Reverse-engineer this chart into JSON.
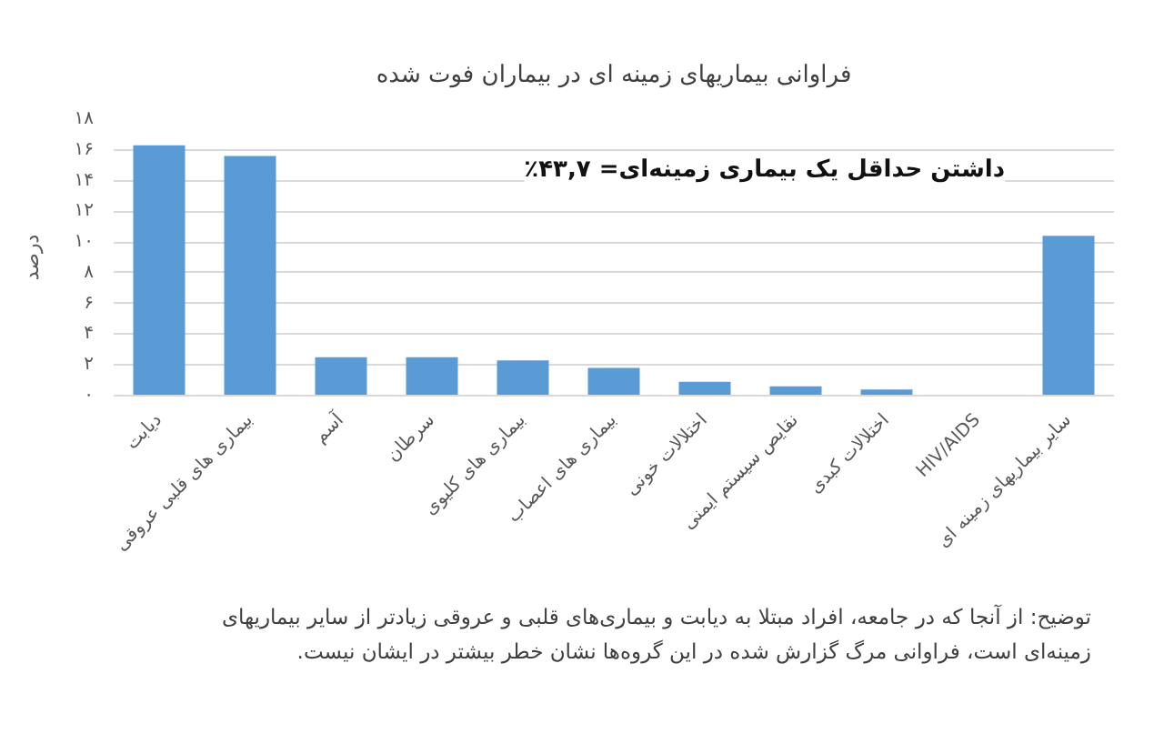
{
  "chart_data": {
    "type": "bar",
    "title": "فراوانی بیماریهای زمینه ای در بیماران فوت شده",
    "ylabel": "درصد",
    "categories": [
      "دیابت",
      "بیماری های قلبی عروقی",
      "آسم",
      "سرطان",
      "بیماری های کلیوی",
      "بیماری های اعصاب",
      "اختلالات خونی",
      "نقایص سیستم ایمنی",
      "اختلالات کبدی",
      "HIV/AIDS",
      "سایر بیماریهای زمینه ای"
    ],
    "values": [
      16.3,
      15.6,
      2.5,
      2.5,
      2.3,
      1.8,
      0.9,
      0.6,
      0.4,
      0,
      10.4
    ],
    "color": "#5b9bd5",
    "ylim": [
      0,
      18
    ],
    "yticks": [
      {
        "value": 0,
        "label": "۰"
      },
      {
        "value": 2,
        "label": "۲"
      },
      {
        "value": 4,
        "label": "۴"
      },
      {
        "value": 6,
        "label": "۶"
      },
      {
        "value": 8,
        "label": "۸"
      },
      {
        "value": 10,
        "label": "۱۰"
      },
      {
        "value": 12,
        "label": "۱۲"
      },
      {
        "value": 14,
        "label": "۱۴"
      },
      {
        "value": 16,
        "label": "۱۶"
      },
      {
        "value": 18,
        "label": "۱۸"
      }
    ],
    "grid": "y",
    "annotations": [
      "داشتن حداقل یک بیماری زمینه‌ای= ۴۳,۷٪",
      "توضیح: از آنجا که در جامعه، افراد مبتلا به دیابت و بیماری‌های قلبی و عروقی زیادتر از سایر بیماریهای زمینه‌ای است، فراوانی مرگ گزارش شده در این گروه‌ها نشان خطر بیشتر در ایشان نیست."
    ]
  }
}
